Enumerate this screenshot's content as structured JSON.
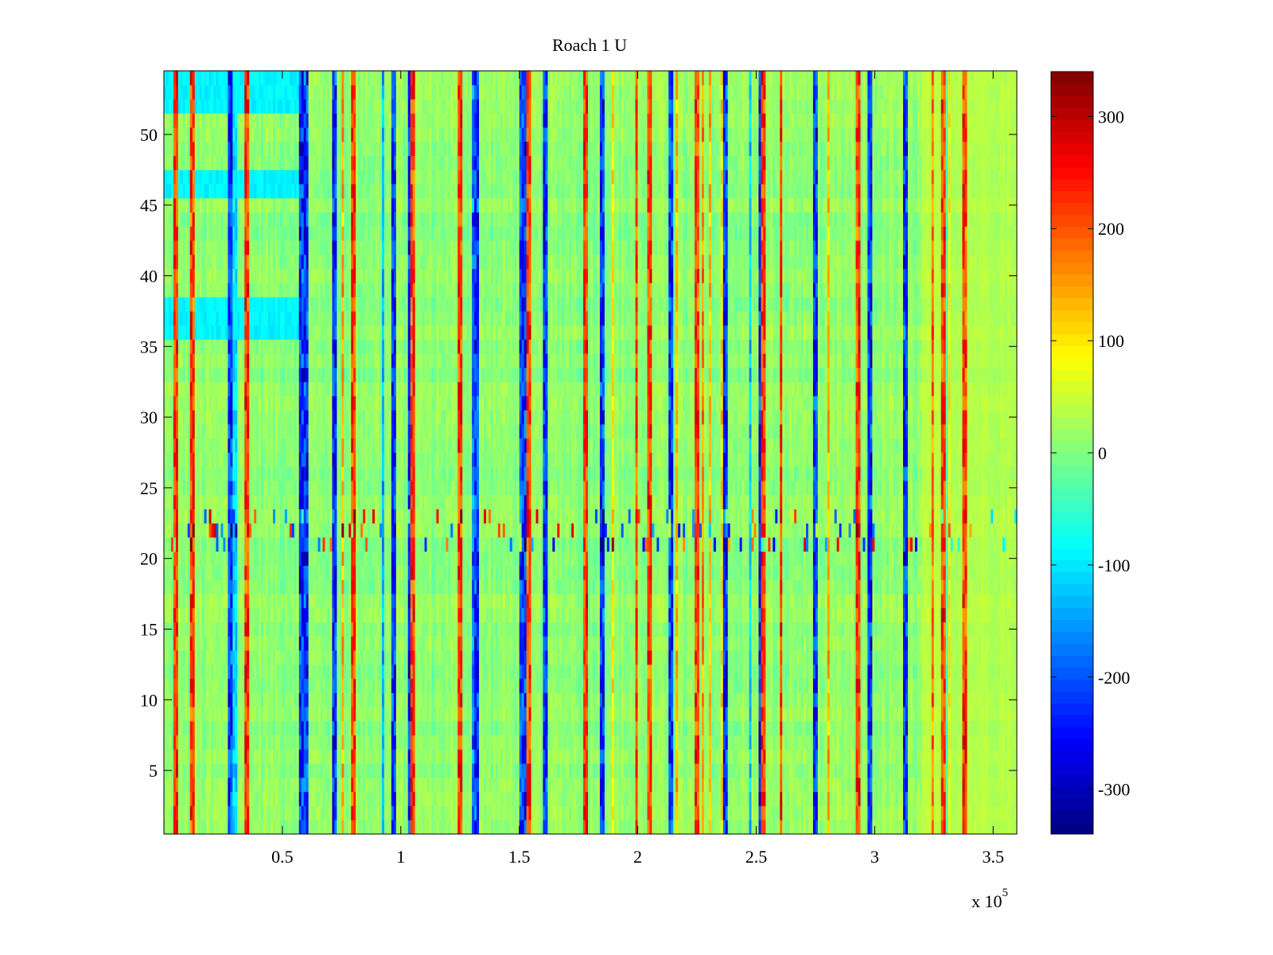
{
  "chart_data": {
    "type": "heatmap",
    "title": "Roach 1 U",
    "xlabel": "",
    "ylabel": "",
    "x_exponent_label": "x 10",
    "x_exponent": "5",
    "xlim": [
      0,
      3.6
    ],
    "ylim": [
      0.5,
      54.5
    ],
    "x_ticks": [
      0.5,
      1,
      1.5,
      2,
      2.5,
      3,
      3.5
    ],
    "x_tick_labels": [
      "0.5",
      "1",
      "1.5",
      "2",
      "2.5",
      "3",
      "3.5"
    ],
    "y_ticks": [
      5,
      10,
      15,
      20,
      25,
      30,
      35,
      40,
      45,
      50
    ],
    "y_tick_labels": [
      "5",
      "10",
      "15",
      "20",
      "25",
      "30",
      "35",
      "40",
      "45",
      "50"
    ],
    "rows": 54,
    "columns": 360,
    "colormap": "jet",
    "clim": [
      -340,
      340
    ],
    "colorbar": {
      "position": "right",
      "ticks": [
        -300,
        -200,
        -100,
        0,
        100,
        200,
        300
      ],
      "tick_labels": [
        "-300",
        "-200",
        "-100",
        "0",
        "100",
        "200",
        "300"
      ]
    },
    "base_value": 10,
    "features": {
      "cyan_rows_left": {
        "x_range": [
          0,
          0.57
        ],
        "rows": [
          [
            36,
            38
          ],
          [
            46,
            47
          ],
          [
            52,
            54
          ]
        ],
        "value": -90
      },
      "noisy_row_band": {
        "rows": [
          21,
          23
        ]
      },
      "yellow_region_right": {
        "x_range": [
          3.2,
          3.6
        ],
        "value": 50
      },
      "strong_negative_columns_x": [
        0.28,
        0.58,
        0.6,
        0.72,
        0.97,
        1.04,
        1.32,
        1.52,
        1.61,
        1.85,
        2.14,
        2.37,
        2.52,
        2.75,
        2.98,
        3.13
      ],
      "strong_positive_columns_x": [
        0.05,
        0.12,
        0.35,
        0.8,
        1.05,
        1.25,
        1.54,
        1.78,
        2.05,
        2.25,
        2.53,
        2.93,
        3.29,
        3.38
      ]
    }
  }
}
